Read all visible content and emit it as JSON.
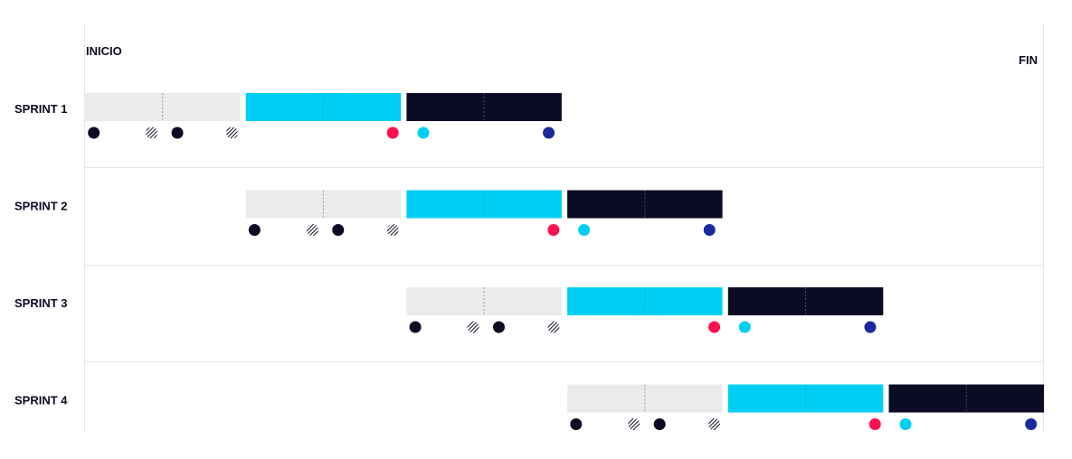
{
  "labels": {
    "start": "INICIO",
    "end": "FIN"
  },
  "colors": {
    "phase1": "#ebebea",
    "phase2": "#00cff5",
    "phase3": "#0b0c24",
    "dot_dark": "#0b0c24",
    "dot_red": "#ff1050",
    "dot_cyan": "#00cff5",
    "dot_blue": "#1a2a9c",
    "grid": "#e6e6e6"
  },
  "timeline": {
    "sprint_length_units": 2,
    "total_units": 6,
    "phase_units": 1
  },
  "sprints": [
    {
      "name": "SPRINT 1",
      "start_unit": 0
    },
    {
      "name": "SPRINT 2",
      "start_unit": 1
    },
    {
      "name": "SPRINT 3",
      "start_unit": 2
    },
    {
      "name": "SPRINT 4",
      "start_unit": 3
    }
  ],
  "phases": [
    {
      "name": "phase1",
      "color_key": "phase1"
    },
    {
      "name": "phase2",
      "color_key": "phase2"
    },
    {
      "name": "phase3",
      "color_key": "phase3"
    }
  ],
  "markers": [
    {
      "offset": 0.06,
      "style": "solid",
      "color_key": "dot_dark"
    },
    {
      "offset": 0.42,
      "style": "hatched",
      "color_key": "dot_dark"
    },
    {
      "offset": 0.58,
      "style": "solid",
      "color_key": "dot_dark"
    },
    {
      "offset": 0.92,
      "style": "hatched",
      "color_key": "dot_dark"
    },
    {
      "offset": 1.92,
      "style": "solid",
      "color_key": "dot_red"
    },
    {
      "offset": 2.11,
      "style": "solid",
      "color_key": "dot_cyan"
    },
    {
      "offset": 2.89,
      "style": "solid",
      "color_key": "dot_blue"
    }
  ]
}
